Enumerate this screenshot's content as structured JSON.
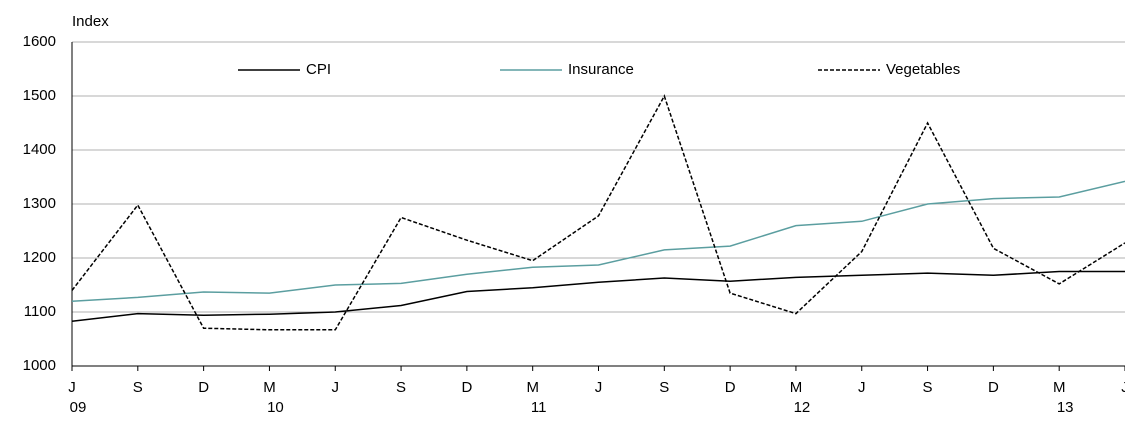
{
  "chart_data": {
    "type": "line",
    "y_label": "Index",
    "categories": [
      "J",
      "S",
      "D",
      "M",
      "J",
      "S",
      "D",
      "M",
      "J",
      "S",
      "D",
      "M",
      "J",
      "S",
      "D",
      "M",
      "J"
    ],
    "years": [
      "09",
      null,
      null,
      "10",
      null,
      null,
      null,
      "11",
      null,
      null,
      null,
      "12",
      null,
      null,
      null,
      "13",
      null
    ],
    "series": [
      {
        "name": "CPI",
        "color": "#000000",
        "dashed": false,
        "values": [
          1083,
          1097,
          1094,
          1096,
          1100,
          1112,
          1138,
          1145,
          1155,
          1163,
          1157,
          1164,
          1168,
          1172,
          1168,
          1175,
          1175
        ]
      },
      {
        "name": "Insurance",
        "color": "#5b9ea0",
        "dashed": false,
        "values": [
          1120,
          1127,
          1137,
          1135,
          1150,
          1153,
          1170,
          1183,
          1187,
          1215,
          1222,
          1260,
          1268,
          1300,
          1310,
          1313,
          1342
        ]
      },
      {
        "name": "Vegetables",
        "color": "#000000",
        "dashed": true,
        "values": [
          1140,
          1298,
          1070,
          1067,
          1067,
          1275,
          1233,
          1195,
          1278,
          1500,
          1135,
          1097,
          1212,
          1450,
          1218,
          1152,
          1228
        ]
      }
    ],
    "ylim": [
      1000,
      1600
    ],
    "yticks": [
      1000,
      1100,
      1200,
      1300,
      1400,
      1500,
      1600
    ],
    "grid": true,
    "legend": "top"
  }
}
